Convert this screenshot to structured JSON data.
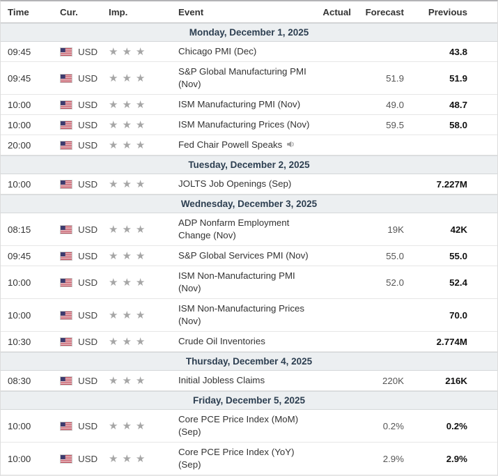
{
  "colors": {
    "day_header_bg": "#eceff1",
    "day_header_text": "#2c3e50",
    "forecast_text": "#555555",
    "previous_text": "#111111",
    "star_color": "#a6a6a6",
    "row_border": "#e6e6e6",
    "flag_red": "#b22234",
    "flag_blue": "#3c3b6e"
  },
  "table": {
    "columns": [
      {
        "label": "Time"
      },
      {
        "label": "Cur."
      },
      {
        "label": "Imp."
      },
      {
        "label": "Event"
      },
      {
        "label": "Actual"
      },
      {
        "label": "Forecast"
      },
      {
        "label": "Previous"
      }
    ],
    "days": [
      {
        "label": "Monday, December 1, 2025",
        "events": [
          {
            "time": "09:45",
            "currency": "USD",
            "flag": "us-flag-icon",
            "importance": 3,
            "event": "Chicago PMI (Dec)",
            "speech": false,
            "actual": "",
            "forecast": "",
            "previous": "43.8"
          },
          {
            "time": "09:45",
            "currency": "USD",
            "flag": "us-flag-icon",
            "importance": 3,
            "event": "S&P Global Manufacturing PMI\n(Nov)",
            "speech": false,
            "actual": "",
            "forecast": "51.9",
            "previous": "51.9"
          },
          {
            "time": "10:00",
            "currency": "USD",
            "flag": "us-flag-icon",
            "importance": 3,
            "event": "ISM Manufacturing PMI (Nov)",
            "speech": false,
            "actual": "",
            "forecast": "49.0",
            "previous": "48.7"
          },
          {
            "time": "10:00",
            "currency": "USD",
            "flag": "us-flag-icon",
            "importance": 3,
            "event": "ISM Manufacturing Prices (Nov)",
            "speech": false,
            "actual": "",
            "forecast": "59.5",
            "previous": "58.0"
          },
          {
            "time": "20:00",
            "currency": "USD",
            "flag": "us-flag-icon",
            "importance": 3,
            "event": "Fed Chair Powell Speaks",
            "speech": true,
            "actual": "",
            "forecast": "",
            "previous": ""
          }
        ]
      },
      {
        "label": "Tuesday, December 2, 2025",
        "events": [
          {
            "time": "10:00",
            "currency": "USD",
            "flag": "us-flag-icon",
            "importance": 3,
            "event": "JOLTS Job Openings (Sep)",
            "speech": false,
            "actual": "",
            "forecast": "",
            "previous": "7.227M"
          }
        ]
      },
      {
        "label": "Wednesday, December 3, 2025",
        "events": [
          {
            "time": "08:15",
            "currency": "USD",
            "flag": "us-flag-icon",
            "importance": 3,
            "event": "ADP Nonfarm Employment\nChange (Nov)",
            "speech": false,
            "actual": "",
            "forecast": "19K",
            "previous": "42K"
          },
          {
            "time": "09:45",
            "currency": "USD",
            "flag": "us-flag-icon",
            "importance": 3,
            "event": "S&P Global Services PMI (Nov)",
            "speech": false,
            "actual": "",
            "forecast": "55.0",
            "previous": "55.0"
          },
          {
            "time": "10:00",
            "currency": "USD",
            "flag": "us-flag-icon",
            "importance": 3,
            "event": "ISM Non-Manufacturing PMI\n(Nov)",
            "speech": false,
            "actual": "",
            "forecast": "52.0",
            "previous": "52.4"
          },
          {
            "time": "10:00",
            "currency": "USD",
            "flag": "us-flag-icon",
            "importance": 3,
            "event": "ISM Non-Manufacturing Prices\n(Nov)",
            "speech": false,
            "actual": "",
            "forecast": "",
            "previous": "70.0"
          },
          {
            "time": "10:30",
            "currency": "USD",
            "flag": "us-flag-icon",
            "importance": 3,
            "event": "Crude Oil Inventories",
            "speech": false,
            "actual": "",
            "forecast": "",
            "previous": "2.774M"
          }
        ]
      },
      {
        "label": "Thursday, December 4, 2025",
        "events": [
          {
            "time": "08:30",
            "currency": "USD",
            "flag": "us-flag-icon",
            "importance": 3,
            "event": "Initial Jobless Claims",
            "speech": false,
            "actual": "",
            "forecast": "220K",
            "previous": "216K"
          }
        ]
      },
      {
        "label": "Friday, December 5, 2025",
        "events": [
          {
            "time": "10:00",
            "currency": "USD",
            "flag": "us-flag-icon",
            "importance": 3,
            "event": "Core PCE Price Index (MoM)\n(Sep)",
            "speech": false,
            "actual": "",
            "forecast": "0.2%",
            "previous": "0.2%"
          },
          {
            "time": "10:00",
            "currency": "USD",
            "flag": "us-flag-icon",
            "importance": 3,
            "event": "Core PCE Price Index (YoY)\n(Sep)",
            "speech": false,
            "actual": "",
            "forecast": "2.9%",
            "previous": "2.9%"
          }
        ]
      }
    ]
  }
}
